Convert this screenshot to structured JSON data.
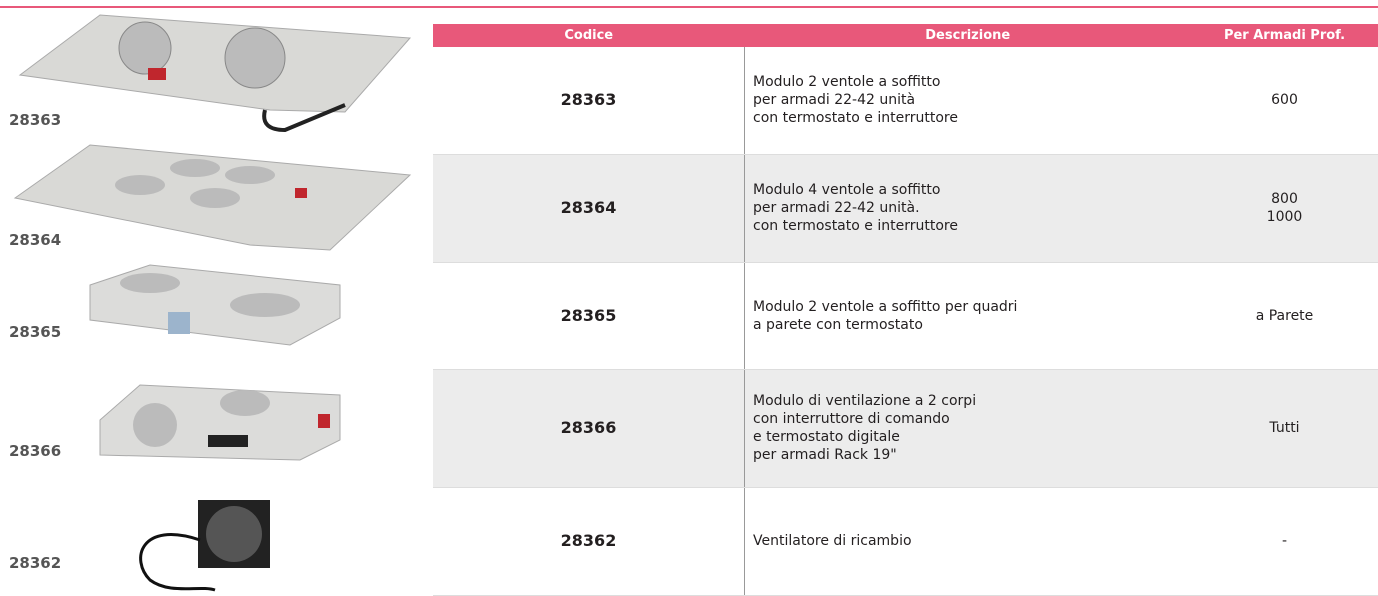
{
  "products": [
    {
      "label": "28363"
    },
    {
      "label": "28364"
    },
    {
      "label": "28365"
    },
    {
      "label": "28366"
    },
    {
      "label": "28362"
    }
  ],
  "table": {
    "header": [
      "Codice",
      "Descrizione",
      "Per Armadi Prof."
    ],
    "rows": [
      {
        "code": "28363",
        "description": [
          "Modulo 2 ventole a soffitto",
          "per armadi 22-42 unità",
          "con termostato e interruttore"
        ],
        "depth": [
          "600"
        ]
      },
      {
        "code": "28364",
        "description": [
          "Modulo 4 ventole a soffitto",
          "per armadi 22-42 unità.",
          "con termostato e interruttore"
        ],
        "depth": [
          "800",
          "1000"
        ]
      },
      {
        "code": "28365",
        "description": [
          "Modulo 2 ventole a soffitto per quadri",
          "a parete con termostato"
        ],
        "depth": [
          "a Parete"
        ]
      },
      {
        "code": "28366",
        "description": [
          "Modulo di ventilazione a 2 corpi",
          "con interruttore di comando",
          "e termostato digitale",
          "per armadi Rack 19\""
        ],
        "depth": [
          "Tutti"
        ]
      },
      {
        "code": "28362",
        "description": [
          "Ventilatore di ricambio"
        ],
        "depth": [
          "-"
        ]
      }
    ]
  }
}
